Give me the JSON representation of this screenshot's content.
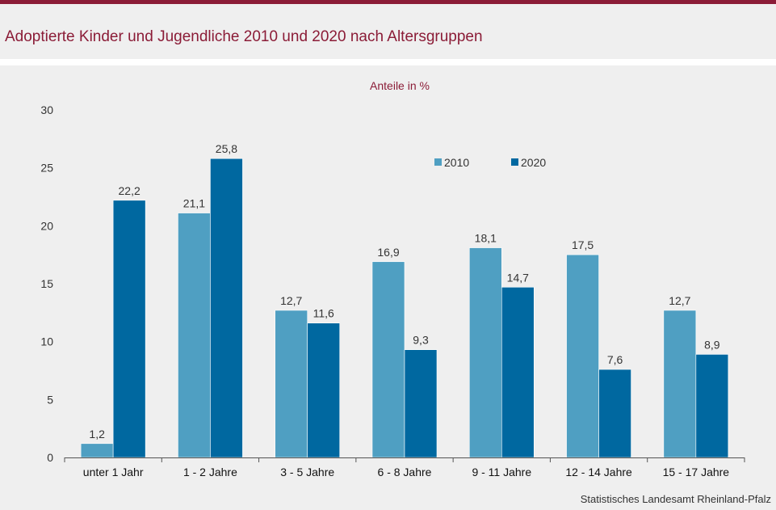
{
  "header": {
    "title": "Adoptierte Kinder und  Jugendliche 2010 und 2020 nach Altersgruppen"
  },
  "colors": {
    "brand": "#8b1c37",
    "series_2010": "#4f9fc2",
    "series_2020": "#0068a0"
  },
  "footer": {
    "source": "Statistisches Landesamt  Rheinland-Pfalz"
  },
  "chart_data": {
    "type": "bar",
    "subtitle": "Anteile in %",
    "categories": [
      "unter 1 Jahr",
      "1 - 2 Jahre",
      "3 - 5 Jahre",
      "6 - 8 Jahre",
      "9 - 11 Jahre",
      "12 - 14 Jahre",
      "15 - 17 Jahre"
    ],
    "series": [
      {
        "name": "2010",
        "values": [
          1.2,
          21.1,
          12.7,
          16.9,
          18.1,
          17.5,
          12.7
        ],
        "labels": [
          "1,2",
          "21,1",
          "12,7",
          "16,9",
          "18,1",
          "17,5",
          "12,7"
        ]
      },
      {
        "name": "2020",
        "values": [
          22.2,
          25.8,
          11.6,
          9.3,
          14.7,
          7.6,
          8.9
        ],
        "labels": [
          "22,2",
          "25,8",
          "11,6",
          "9,3",
          "14,7",
          "7,6",
          "8,9"
        ]
      }
    ],
    "ylim": [
      0,
      30
    ],
    "yticks": [
      0,
      5,
      10,
      15,
      20,
      25,
      30
    ],
    "grid": false,
    "legend_position": "top-right"
  }
}
